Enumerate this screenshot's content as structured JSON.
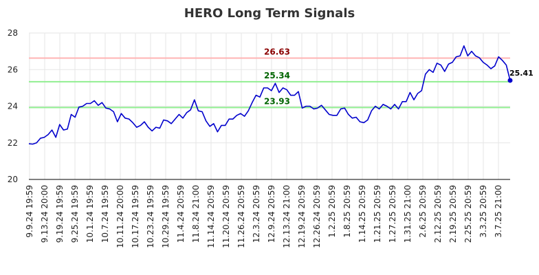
{
  "chart_data": {
    "type": "line",
    "title": "HERO Long Term Signals",
    "ylim": [
      20,
      28
    ],
    "y_ticks": [
      20,
      22,
      24,
      26,
      28
    ],
    "x_tick_labels": [
      "9.9.24 19:59",
      "9.13.24 20:00",
      "9.19.24 19:59",
      "9.25.24 19:59",
      "10.1.24 19:59",
      "10.7.24 19:59",
      "10.11.24 20:00",
      "10.17.24 19:59",
      "10.23.24 19:59",
      "10.29.24 19:59",
      "11.4.24 20:59",
      "11.8.24 21:00",
      "11.14.24 20:59",
      "11.20.24 20:59",
      "11.26.24 20:59",
      "12.3.24 20:59",
      "12.9.24 20:59",
      "12.13.24 21:00",
      "12.19.24 20:59",
      "12.26.24 20:59",
      "1.2.25 20:59",
      "1.8.25 20:59",
      "1.14.25 20:59",
      "1.21.25 20:59",
      "1.27.25 20:59",
      "1.31.25 21:00",
      "2.6.25 20:59",
      "2.12.25 20:59",
      "2.19.25 20:59",
      "2.25.25 20:59",
      "3.3.25 20:59",
      "3.7.25 21:00"
    ],
    "grid": true,
    "line_color": "#0000cc",
    "series": [
      {
        "values": [
          21.95,
          21.93,
          22.0,
          22.25,
          22.3,
          22.45,
          22.7,
          22.3,
          23.0,
          22.7,
          22.75,
          23.55,
          23.4,
          23.95,
          24.0,
          24.15,
          24.15,
          24.3,
          24.05,
          24.2,
          23.9,
          23.85,
          23.7,
          23.15,
          23.6,
          23.35,
          23.3,
          23.1,
          22.85,
          22.95,
          23.15,
          22.85,
          22.65,
          22.85,
          22.8,
          23.25,
          23.2,
          23.05,
          23.3,
          23.55,
          23.35,
          23.65,
          23.8,
          24.35,
          23.75,
          23.7,
          23.2,
          22.9,
          23.05,
          22.6,
          22.95,
          22.95,
          23.3,
          23.3,
          23.5,
          23.6,
          23.45,
          23.75,
          24.2,
          24.6,
          24.5,
          25.0,
          25.0,
          24.85,
          25.25,
          24.75,
          25.0,
          24.9,
          24.6,
          24.6,
          24.8,
          23.9,
          24.0,
          24.0,
          23.85,
          23.9,
          24.05,
          23.8,
          23.55,
          23.5,
          23.5,
          23.85,
          23.9,
          23.55,
          23.35,
          23.4,
          23.15,
          23.1,
          23.25,
          23.75,
          24.0,
          23.85,
          24.1,
          24.0,
          23.85,
          24.1,
          23.85,
          24.25,
          24.25,
          24.75,
          24.35,
          24.7,
          24.85,
          25.75,
          26.0,
          25.85,
          26.35,
          26.25,
          25.9,
          26.3,
          26.4,
          26.7,
          26.75,
          27.3,
          26.75,
          27.0,
          26.75,
          26.65,
          26.4,
          26.25,
          26.05,
          26.2,
          26.7,
          26.5,
          26.25,
          25.41
        ]
      }
    ],
    "reference_lines": [
      {
        "value": 26.63,
        "label": "26.63",
        "color": "#ffb3b3",
        "label_color": "#8b0000"
      },
      {
        "value": 25.34,
        "label": "25.34",
        "color": "#90ee90",
        "label_color": "#006400"
      },
      {
        "value": 23.93,
        "label": "23.93",
        "color": "#90ee90",
        "label_color": "#006400"
      }
    ],
    "last_value_label": "25.41"
  }
}
